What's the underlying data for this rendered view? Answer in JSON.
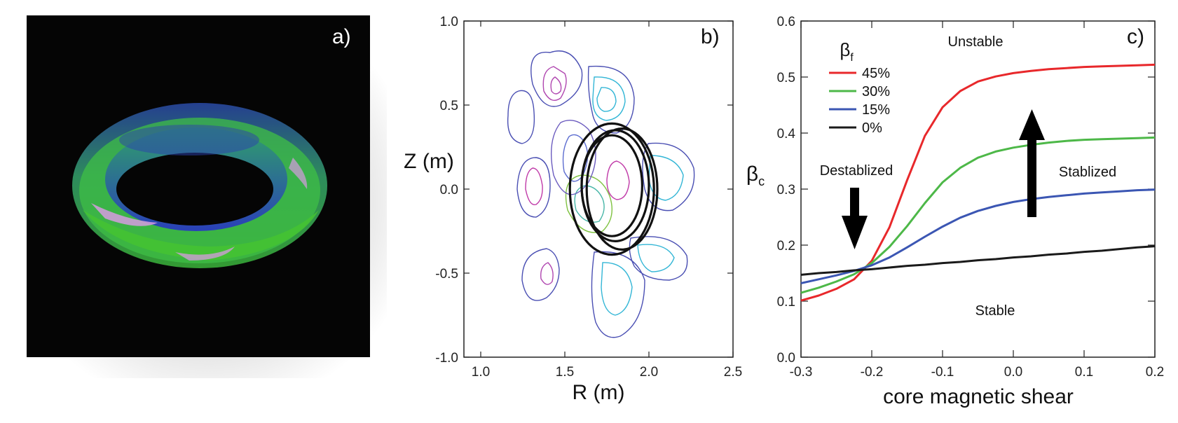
{
  "panels": {
    "a": {
      "label": "a)"
    },
    "b": {
      "label": "b)"
    },
    "c": {
      "label": "c)"
    }
  },
  "chart_data": [
    {
      "type": "image",
      "panel": "a)",
      "colors": {
        "background": "#050505",
        "torus_outer": "#2fae2f",
        "torus_inner": "#3b59c9",
        "highlight": "#d79be0"
      }
    },
    {
      "type": "contour",
      "panel": "b)",
      "xlabel": "R (m)",
      "ylabel": "Z (m)",
      "xlim": [
        0.9,
        2.5
      ],
      "ylim": [
        -1.0,
        1.0
      ],
      "xticks": [
        "1.0",
        "1.5",
        "2.0",
        "2.5"
      ],
      "yticks": [
        "1.0",
        "0.5",
        "0.0",
        "-0.5",
        "-1.0"
      ],
      "flux_surfaces": [
        {
          "cx": 1.78,
          "cz": 0.0,
          "a": 0.25,
          "b": 0.39
        },
        {
          "cx": 1.78,
          "cz": 0.02,
          "a": 0.18,
          "b": 0.3
        },
        {
          "cx": 1.8,
          "cz": 0.02,
          "a": 0.2,
          "b": 0.33
        },
        {
          "cx": 1.84,
          "cz": 0.0,
          "a": 0.21,
          "b": 0.36
        }
      ]
    },
    {
      "type": "line",
      "panel": "c)",
      "xlabel": "core magnetic shear",
      "ylabel": "β",
      "ylabel_sub": "c",
      "xlim": [
        -0.3,
        0.2
      ],
      "ylim": [
        0.0,
        0.6
      ],
      "xticks": [
        "-0.3",
        "-0.2",
        "-0.1",
        "0.0",
        "0.1",
        "0.2"
      ],
      "yticks": [
        "0.6",
        "0.5",
        "0.4",
        "0.3",
        "0.2",
        "0.1",
        "0.0"
      ],
      "legend_title": "β",
      "legend_title_sub": "f",
      "legend_position": "top-left",
      "x": [
        -0.3,
        -0.275,
        -0.25,
        -0.225,
        -0.2,
        -0.175,
        -0.15,
        -0.125,
        -0.1,
        -0.075,
        -0.05,
        -0.025,
        0.0,
        0.025,
        0.05,
        0.075,
        0.1,
        0.125,
        0.15,
        0.175,
        0.2
      ],
      "series": [
        {
          "name": "45%",
          "color": "#e8282b",
          "values": [
            0.101,
            0.11,
            0.122,
            0.139,
            0.172,
            0.232,
            0.316,
            0.395,
            0.446,
            0.475,
            0.492,
            0.501,
            0.507,
            0.511,
            0.514,
            0.516,
            0.518,
            0.519,
            0.52,
            0.521,
            0.522
          ]
        },
        {
          "name": "30%",
          "color": "#4db848",
          "values": [
            0.115,
            0.124,
            0.135,
            0.148,
            0.168,
            0.197,
            0.234,
            0.275,
            0.312,
            0.338,
            0.356,
            0.367,
            0.374,
            0.379,
            0.383,
            0.386,
            0.388,
            0.389,
            0.39,
            0.391,
            0.392
          ]
        },
        {
          "name": "15%",
          "color": "#3b56b3",
          "values": [
            0.132,
            0.139,
            0.146,
            0.154,
            0.164,
            0.178,
            0.196,
            0.215,
            0.233,
            0.249,
            0.261,
            0.27,
            0.277,
            0.282,
            0.286,
            0.289,
            0.292,
            0.294,
            0.296,
            0.298,
            0.299
          ]
        },
        {
          "name": "0%",
          "color": "#1a1a1a",
          "values": [
            0.147,
            0.15,
            0.152,
            0.155,
            0.157,
            0.16,
            0.163,
            0.165,
            0.168,
            0.17,
            0.173,
            0.175,
            0.178,
            0.18,
            0.183,
            0.185,
            0.188,
            0.19,
            0.193,
            0.196,
            0.198
          ]
        }
      ],
      "annotations": {
        "unstable": "Unstable",
        "stable": "Stable",
        "destabilized": "Destablized",
        "stabilized": "Stablized"
      }
    }
  ]
}
